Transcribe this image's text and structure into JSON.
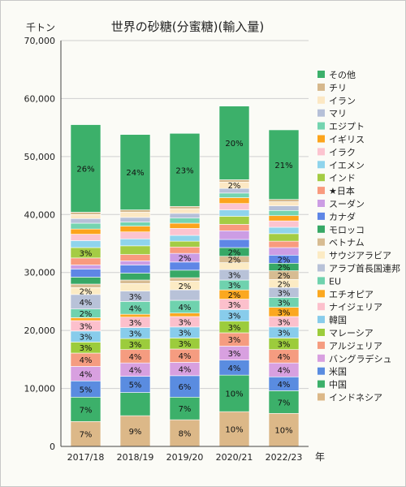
{
  "chart_data": {
    "type": "bar",
    "stacked": true,
    "title": "世界の砂糖(分蜜糖)(輸入量)",
    "y_unit_label": "千トン",
    "x_unit_label": "年",
    "categories": [
      "2017/18",
      "2018/19",
      "2019/20",
      "2020/21",
      "2022/23"
    ],
    "ylim": [
      0,
      70000
    ],
    "yticks": [
      0,
      10000,
      20000,
      30000,
      40000,
      50000,
      60000,
      70000
    ],
    "ytick_labels": [
      "0",
      "10,000",
      "20,000",
      "30,000",
      "40,000",
      "50,000",
      "60,000",
      "70,000"
    ],
    "grid": true,
    "legend_position": "right",
    "series": [
      {
        "name": "インドネシア",
        "color": "#dcb888",
        "values": [
          4300,
          5300,
          4600,
          6000,
          5700
        ],
        "labels": [
          "7%",
          "9%",
          "8%",
          "10%",
          "10%"
        ]
      },
      {
        "name": "中国",
        "color": "#3cb06a",
        "values": [
          4200,
          4000,
          3900,
          6300,
          3900
        ],
        "labels": [
          "7%",
          "",
          "7%",
          "10%",
          "7%"
        ]
      },
      {
        "name": "米国",
        "color": "#5a8ce0",
        "values": [
          2800,
          2800,
          3700,
          2600,
          2400
        ],
        "labels": [
          "5%",
          "5%",
          "6%",
          "4%",
          "4%"
        ]
      },
      {
        "name": "バングラデシュ",
        "color": "#d8a0e0",
        "values": [
          2500,
          2300,
          2300,
          2400,
          2400
        ],
        "labels": [
          "4%",
          "4%",
          "4%",
          "3%",
          "4%"
        ]
      },
      {
        "name": "アルジェリア",
        "color": "#f59c80",
        "values": [
          2300,
          2300,
          2300,
          2300,
          2300
        ],
        "labels": [
          "4%",
          "4%",
          "4%",
          "3%",
          "4%"
        ]
      },
      {
        "name": "マレーシア",
        "color": "#9ccc3c",
        "values": [
          1900,
          1900,
          1900,
          2000,
          2000
        ],
        "labels": [
          "3%",
          "3%",
          "3%",
          "3%",
          "3%"
        ]
      },
      {
        "name": "韓国",
        "color": "#88cceb",
        "values": [
          1900,
          1900,
          1900,
          2000,
          1900
        ],
        "labels": [
          "3%",
          "3%",
          "3%",
          "3%",
          "3%"
        ]
      },
      {
        "name": "ナイジェリア",
        "color": "#fcc0cc",
        "values": [
          1800,
          1800,
          1800,
          1800,
          1800
        ],
        "labels": [
          "3%",
          "3%",
          "3%",
          "3%",
          "3%"
        ]
      },
      {
        "name": "エチオピア",
        "color": "#fba820",
        "values": [
          500,
          500,
          600,
          1600,
          1600
        ],
        "labels": [
          "",
          "",
          "",
          "2%",
          "3%"
        ]
      },
      {
        "name": "EU",
        "color": "#6fd2ae",
        "values": [
          1500,
          2200,
          2200,
          1700,
          1700
        ],
        "labels": [
          "2%",
          "4%",
          "4%",
          "3%",
          "3%"
        ]
      },
      {
        "name": "アラブ首長国連邦",
        "color": "#b8c2d8",
        "values": [
          2500,
          1800,
          1800,
          1800,
          1700
        ],
        "labels": [
          "4%",
          "3%",
          "",
          "3%",
          "3%"
        ]
      },
      {
        "name": "サウジアラビア",
        "color": "#fcebc4",
        "values": [
          1200,
          1300,
          1500,
          1200,
          1400
        ],
        "labels": [
          "2%",
          "",
          "2%",
          "",
          "2%"
        ]
      },
      {
        "name": "ベトナム",
        "color": "#d7bc92",
        "values": [
          600,
          600,
          600,
          1100,
          1500
        ],
        "labels": [
          "",
          "",
          "",
          "2%",
          "2%"
        ]
      },
      {
        "name": "モロッコ",
        "color": "#37a866",
        "values": [
          1200,
          1200,
          1300,
          1500,
          1300
        ],
        "labels": [
          "",
          "",
          "",
          "2%",
          "2%"
        ]
      },
      {
        "name": "カナダ",
        "color": "#5e86e6",
        "values": [
          1400,
          1400,
          1400,
          1400,
          1400
        ],
        "labels": [
          "",
          "",
          "",
          "",
          "2%"
        ]
      },
      {
        "name": "スーダン",
        "color": "#cc9de4",
        "values": [
          700,
          700,
          1500,
          1500,
          1300
        ],
        "labels": [
          "",
          "",
          "2%",
          "",
          ""
        ]
      },
      {
        "name": "★日本",
        "color": "#f99a7e",
        "values": [
          1200,
          1100,
          1100,
          1100,
          1100
        ],
        "labels": [
          "",
          "",
          "",
          "",
          ""
        ]
      },
      {
        "name": "インド",
        "color": "#a4cc44",
        "values": [
          1800,
          1500,
          1000,
          1400,
          1300
        ],
        "labels": [
          "3%",
          "",
          "",
          "",
          ""
        ]
      },
      {
        "name": "イエメン",
        "color": "#8fd4ec",
        "values": [
          1200,
          1200,
          1000,
          1100,
          1100
        ],
        "labels": [
          "",
          "",
          "",
          "",
          ""
        ]
      },
      {
        "name": "イラク",
        "color": "#fcc4d0",
        "values": [
          1100,
          1200,
          1200,
          1100,
          1100
        ],
        "labels": [
          "",
          "",
          "",
          "",
          ""
        ]
      },
      {
        "name": "イギリス",
        "color": "#fca41c",
        "values": [
          900,
          1000,
          900,
          1000,
          900
        ],
        "labels": [
          "",
          "",
          "",
          "",
          ""
        ]
      },
      {
        "name": "エジプト",
        "color": "#74d4b0",
        "values": [
          1000,
          700,
          900,
          800,
          900
        ],
        "labels": [
          "",
          "",
          "",
          "",
          ""
        ]
      },
      {
        "name": "マリ",
        "color": "#b6c0d8",
        "values": [
          800,
          800,
          800,
          800,
          800
        ],
        "labels": [
          "",
          "",
          "",
          "",
          ""
        ]
      },
      {
        "name": "イラン",
        "color": "#fce8c4",
        "values": [
          700,
          900,
          800,
          1100,
          700
        ],
        "labels": [
          "",
          "",
          "",
          "2%",
          ""
        ]
      },
      {
        "name": "チリ",
        "color": "#d6b88c",
        "values": [
          400,
          400,
          400,
          400,
          400
        ],
        "labels": [
          "",
          "",
          "",
          "",
          ""
        ]
      },
      {
        "name": "その他",
        "color": "#3cb06a",
        "values": [
          15100,
          13000,
          12600,
          12700,
          12000
        ],
        "labels": [
          "26%",
          "24%",
          "23%",
          "20%",
          "21%"
        ]
      }
    ]
  }
}
